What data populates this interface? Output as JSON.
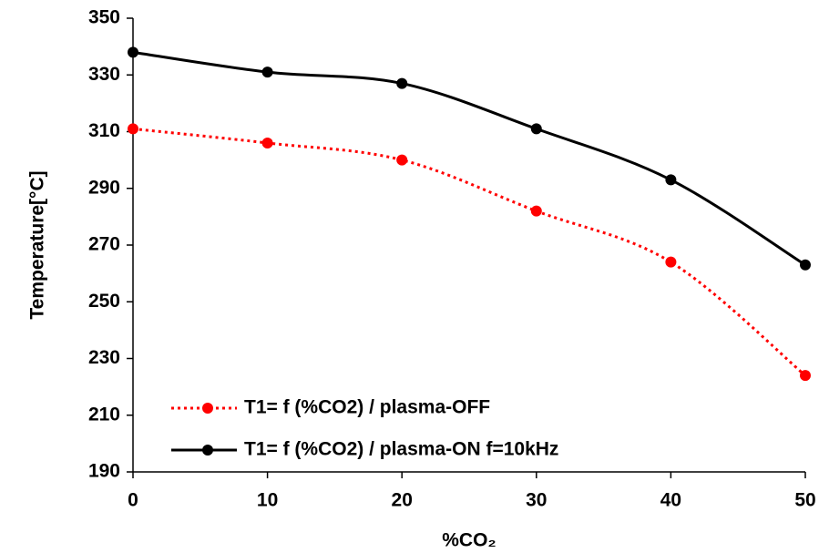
{
  "chart_data": {
    "type": "line",
    "x": [
      0,
      10,
      20,
      30,
      40,
      50
    ],
    "series": [
      {
        "name": "T1= f (%CO2) / plasma-OFF",
        "color": "#ff0000",
        "dash": "dotted",
        "values": [
          311,
          306,
          300,
          282,
          264,
          224
        ]
      },
      {
        "name": "T1= f (%CO2) / plasma-ON f=10kHz",
        "color": "#000000",
        "dash": "solid",
        "values": [
          338,
          331,
          327,
          311,
          293,
          263
        ]
      }
    ],
    "x_label": "%CO₂",
    "y_label": "Temperature[°C]",
    "xlim": [
      0,
      50
    ],
    "xticks": [
      0,
      10,
      20,
      30,
      40,
      50
    ],
    "ylim": [
      190,
      350
    ],
    "yticks": [
      190,
      210,
      230,
      250,
      270,
      290,
      310,
      330,
      350
    ],
    "grid": false,
    "legend": "lower left"
  }
}
